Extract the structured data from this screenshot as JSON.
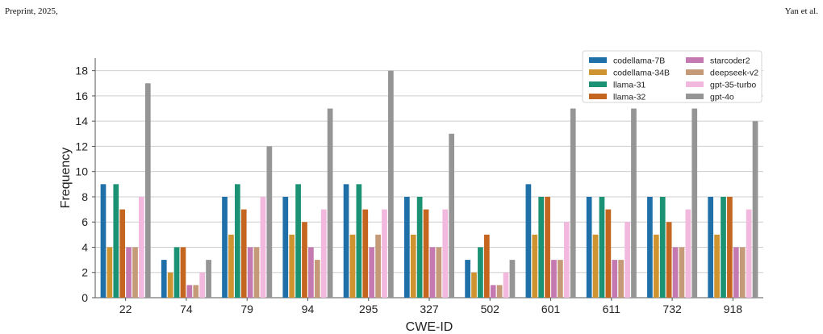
{
  "header": {
    "left": "Preprint, 2025,",
    "right": "Yan et al."
  },
  "chart_data": {
    "type": "bar",
    "xlabel": "CWE-ID",
    "ylabel": "Frequency",
    "ylim": [
      0,
      19
    ],
    "yticks": [
      0,
      2,
      4,
      6,
      8,
      10,
      12,
      14,
      16,
      18
    ],
    "grid": true,
    "legend_position": "top-right",
    "categories": [
      "22",
      "74",
      "79",
      "94",
      "295",
      "327",
      "502",
      "601",
      "611",
      "732",
      "918"
    ],
    "series": [
      {
        "name": "codellama-7B",
        "color": "#1f6fa8",
        "values": [
          9,
          3,
          8,
          8,
          9,
          8,
          3,
          9,
          8,
          8,
          8
        ]
      },
      {
        "name": "codellama-34B",
        "color": "#cf9330",
        "values": [
          4,
          2,
          5,
          5,
          5,
          5,
          2,
          5,
          5,
          5,
          5
        ]
      },
      {
        "name": "llama-31",
        "color": "#1a9273",
        "values": [
          9,
          4,
          9,
          9,
          9,
          8,
          4,
          8,
          8,
          8,
          8
        ]
      },
      {
        "name": "llama-32",
        "color": "#c4661f",
        "values": [
          7,
          4,
          7,
          6,
          7,
          7,
          5,
          8,
          7,
          6,
          8
        ]
      },
      {
        "name": "starcoder2",
        "color": "#c479b0",
        "values": [
          4,
          1,
          4,
          4,
          4,
          4,
          1,
          3,
          3,
          4,
          4
        ]
      },
      {
        "name": "deepseek-v2",
        "color": "#c59a78",
        "values": [
          4,
          1,
          4,
          3,
          5,
          4,
          1,
          3,
          3,
          4,
          4
        ]
      },
      {
        "name": "gpt-35-turbo",
        "color": "#f2b8de",
        "values": [
          8,
          2,
          8,
          7,
          7,
          7,
          2,
          6,
          6,
          7,
          7
        ]
      },
      {
        "name": "gpt-4o",
        "color": "#959595",
        "values": [
          17,
          3,
          12,
          15,
          18,
          13,
          3,
          15,
          15,
          15,
          14
        ]
      }
    ]
  }
}
